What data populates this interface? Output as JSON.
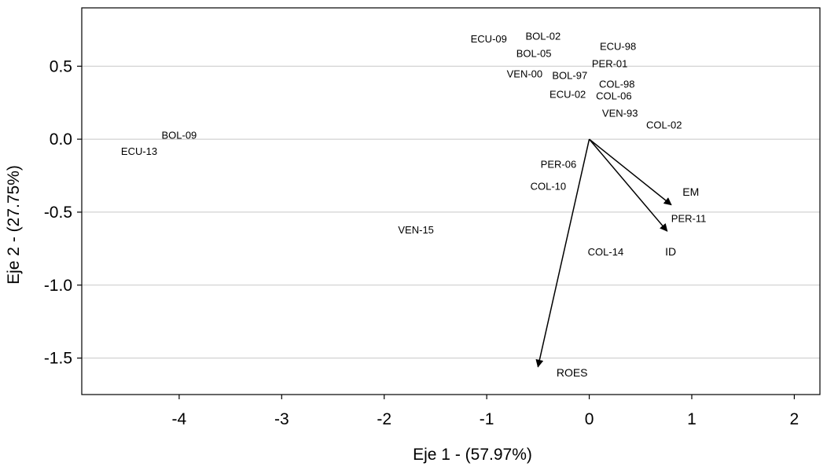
{
  "chart_data": {
    "type": "scatter",
    "title": "",
    "xlabel": "Eje 1 - (57.97%)",
    "ylabel": "Eje 2 - (27.75%)",
    "xlim": [
      -4.95,
      2.25
    ],
    "ylim": [
      -1.75,
      0.9
    ],
    "xticks": [
      -4,
      -3,
      -2,
      -1,
      0,
      1,
      2
    ],
    "yticks": [
      0.5,
      0.0,
      -0.5,
      -1.0,
      -1.5
    ],
    "xtick_labels": [
      "-4",
      "-3",
      "-2",
      "-1",
      "0",
      "1",
      "2"
    ],
    "ytick_labels": [
      "0.5",
      "0.0",
      "-0.5",
      "-1.0",
      "-1.5"
    ],
    "grid": "horizontal",
    "points": [
      {
        "label": "ECU-09",
        "x": -0.98,
        "y": 0.69
      },
      {
        "label": "BOL-02",
        "x": -0.45,
        "y": 0.71
      },
      {
        "label": "BOL-05",
        "x": -0.54,
        "y": 0.59
      },
      {
        "label": "ECU-98",
        "x": 0.28,
        "y": 0.64
      },
      {
        "label": "PER-01",
        "x": 0.2,
        "y": 0.52
      },
      {
        "label": "VEN-00",
        "x": -0.63,
        "y": 0.45
      },
      {
        "label": "BOL-97",
        "x": -0.19,
        "y": 0.44
      },
      {
        "label": "COL-98",
        "x": 0.27,
        "y": 0.38
      },
      {
        "label": "ECU-02",
        "x": -0.21,
        "y": 0.31
      },
      {
        "label": "COL-06",
        "x": 0.24,
        "y": 0.3
      },
      {
        "label": "VEN-93",
        "x": 0.3,
        "y": 0.18
      },
      {
        "label": "COL-02",
        "x": 0.73,
        "y": 0.1
      },
      {
        "label": "BOL-09",
        "x": -4.0,
        "y": 0.03
      },
      {
        "label": "ECU-13",
        "x": -4.39,
        "y": -0.08
      },
      {
        "label": "PER-06",
        "x": -0.3,
        "y": -0.17
      },
      {
        "label": "COL-10",
        "x": -0.4,
        "y": -0.32
      },
      {
        "label": "PER-11",
        "x": 0.97,
        "y": -0.54
      },
      {
        "label": "VEN-15",
        "x": -1.69,
        "y": -0.62
      },
      {
        "label": "COL-14",
        "x": 0.16,
        "y": -0.77
      }
    ],
    "vectors": [
      {
        "label": "EM",
        "x": 0.8,
        "y": -0.45,
        "label_x": 0.91,
        "label_y": -0.36
      },
      {
        "label": "ID",
        "x": 0.76,
        "y": -0.63,
        "label_x": 0.74,
        "label_y": -0.77
      },
      {
        "label": "ROES",
        "x": -0.5,
        "y": -1.56,
        "label_x": -0.32,
        "label_y": -1.6
      }
    ]
  }
}
